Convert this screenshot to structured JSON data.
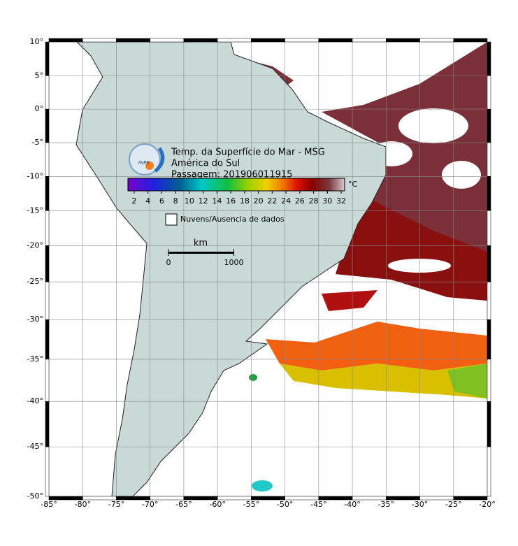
{
  "map": {
    "title_lines": [
      "Temp. da Superfície do Mar - MSG",
      "América do Sul",
      "Passagem: 201906011915"
    ],
    "logo_text": "INPE",
    "projection": "mercator",
    "xlim": [
      -85,
      -20
    ],
    "ylim": [
      -50,
      10
    ],
    "grid": true,
    "xticks": [
      {
        "value": -85,
        "label": "-85°"
      },
      {
        "value": -80,
        "label": "-80°"
      },
      {
        "value": -75,
        "label": "-75°"
      },
      {
        "value": -70,
        "label": "-70°"
      },
      {
        "value": -65,
        "label": "-65°"
      },
      {
        "value": -60,
        "label": "-60°"
      },
      {
        "value": -55,
        "label": "-55°"
      },
      {
        "value": -50,
        "label": "-50°"
      },
      {
        "value": -45,
        "label": "-45°"
      },
      {
        "value": -40,
        "label": "-40°"
      },
      {
        "value": -35,
        "label": "-35°"
      },
      {
        "value": -30,
        "label": "-30°"
      },
      {
        "value": -25,
        "label": "-25°"
      },
      {
        "value": -20,
        "label": "-20°"
      }
    ],
    "yticks": [
      {
        "value": 10,
        "label": "10°"
      },
      {
        "value": 5,
        "label": "5°"
      },
      {
        "value": 0,
        "label": "0°"
      },
      {
        "value": -5,
        "label": "-5°"
      },
      {
        "value": -10,
        "label": "-10°"
      },
      {
        "value": -15,
        "label": "-15°"
      },
      {
        "value": -20,
        "label": "-20°"
      },
      {
        "value": -25,
        "label": "-25°"
      },
      {
        "value": -30,
        "label": "-30°"
      },
      {
        "value": -35,
        "label": "-35°"
      },
      {
        "value": -40,
        "label": "-40°"
      },
      {
        "value": -45,
        "label": "-45°"
      },
      {
        "value": -50,
        "label": "-50°"
      }
    ],
    "colorbar": {
      "unit": "°C",
      "clim": [
        1.1,
        32.5
      ],
      "ticks": [
        2,
        4,
        6,
        8,
        10,
        12,
        14,
        16,
        18,
        20,
        22,
        24,
        26,
        28,
        30,
        32
      ]
    },
    "legend": "Nuvens/Ausencia de dados",
    "scalebar": {
      "unit": "km",
      "ticks": [
        0,
        1000
      ]
    }
  }
}
